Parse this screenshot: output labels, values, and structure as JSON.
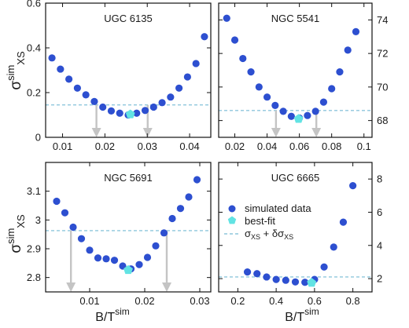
{
  "figure": {
    "ylabel_main": "σ",
    "ylabel_sup": "sim",
    "ylabel_sub": "XS",
    "xlabel_main": "B/T",
    "xlabel_sup": "sim"
  },
  "legend": {
    "panel": 3,
    "items": [
      {
        "kind": "marker",
        "label": "simulated data"
      },
      {
        "kind": "pentagon",
        "label": "best-fit"
      },
      {
        "kind": "dashed",
        "label_parts": [
          "σ",
          "XS",
          " + δσ",
          "XS"
        ]
      }
    ]
  },
  "colors": {
    "points": "#2d4fd0",
    "bestfit": "#62e3e3",
    "threshold": "#8ec6dc",
    "arrow": "#c4c4c4",
    "axis": "#111111"
  },
  "chart_data": [
    {
      "type": "scatter",
      "title": "UGC 6135",
      "xlim": [
        0.006,
        0.045
      ],
      "ylim": [
        0,
        0.6
      ],
      "xticks": [
        0.01,
        0.02,
        0.03,
        0.04
      ],
      "xtick_labels": [
        "0.01",
        "0.02",
        "0.03",
        "0.04"
      ],
      "yticks": [
        0,
        0.2,
        0.4,
        0.6
      ],
      "ytick_labels": [
        "0",
        "0.2",
        "0.4",
        "0.6"
      ],
      "yaxis_side": "left",
      "x": [
        0.0075,
        0.0095,
        0.0115,
        0.0135,
        0.0155,
        0.0175,
        0.0195,
        0.0215,
        0.0235,
        0.0255,
        0.0275,
        0.0295,
        0.0315,
        0.0335,
        0.0355,
        0.0375,
        0.0395,
        0.0415,
        0.0435
      ],
      "y": [
        0.355,
        0.305,
        0.26,
        0.22,
        0.19,
        0.16,
        0.135,
        0.118,
        0.108,
        0.1,
        0.108,
        0.12,
        0.135,
        0.155,
        0.18,
        0.22,
        0.27,
        0.33,
        0.45
      ],
      "best_fit": {
        "x": 0.026,
        "y": 0.103
      },
      "threshold": 0.145,
      "arrows_x": [
        0.018,
        0.0301
      ]
    },
    {
      "type": "scatter",
      "title": "NGC 5541",
      "xlim": [
        0.01,
        0.105
      ],
      "ylim": [
        67,
        75
      ],
      "xticks": [
        0.02,
        0.04,
        0.06,
        0.08,
        0.1
      ],
      "xtick_labels": [
        "0.02",
        "0.04",
        "0.06",
        "0.08",
        "0.1"
      ],
      "yticks": [
        68,
        70,
        72,
        74
      ],
      "ytick_labels": [
        "68",
        "70",
        "72",
        "74"
      ],
      "yaxis_side": "right",
      "x": [
        0.015,
        0.02,
        0.025,
        0.03,
        0.035,
        0.04,
        0.045,
        0.05,
        0.055,
        0.06,
        0.065,
        0.07,
        0.075,
        0.08,
        0.085,
        0.09,
        0.095
      ],
      "y": [
        74.1,
        72.8,
        71.7,
        70.9,
        70.0,
        69.4,
        68.9,
        68.55,
        68.25,
        68.15,
        68.3,
        68.55,
        69.1,
        69.9,
        70.9,
        72.2,
        73.3
      ],
      "best_fit": {
        "x": 0.0595,
        "y": 68.1
      },
      "threshold": 68.6,
      "arrows_x": [
        0.0455,
        0.0705
      ]
    },
    {
      "type": "scatter",
      "title": "NGC 5691",
      "xlim": [
        0.002,
        0.032
      ],
      "ylim": [
        2.75,
        3.2
      ],
      "xticks": [
        0.01,
        0.02,
        0.03
      ],
      "xtick_labels": [
        "0.01",
        "0.02",
        "0.03"
      ],
      "yticks": [
        2.8,
        2.9,
        3.0,
        3.1
      ],
      "ytick_labels": [
        "2.8",
        "2.9",
        "3",
        "3.1"
      ],
      "yaxis_side": "left",
      "x": [
        0.004,
        0.0055,
        0.007,
        0.0085,
        0.01,
        0.0115,
        0.013,
        0.0145,
        0.016,
        0.0175,
        0.019,
        0.0205,
        0.022,
        0.0235,
        0.025,
        0.0265,
        0.028,
        0.0295
      ],
      "y": [
        3.065,
        3.025,
        2.975,
        2.935,
        2.895,
        2.868,
        2.865,
        2.86,
        2.84,
        2.83,
        2.845,
        2.87,
        2.91,
        2.955,
        3.005,
        3.04,
        3.08,
        3.14
      ],
      "best_fit": {
        "x": 0.017,
        "y": 2.826
      },
      "threshold": 2.963,
      "arrows_x": [
        0.0066,
        0.024
      ]
    },
    {
      "type": "scatter",
      "title": "UGC 6665",
      "xlim": [
        0.1,
        0.9
      ],
      "ylim": [
        1.2,
        9
      ],
      "xticks": [
        0.2,
        0.4,
        0.6,
        0.8
      ],
      "xtick_labels": [
        "0.2",
        "0.4",
        "0.6",
        "0.8"
      ],
      "yticks": [
        2,
        4,
        6,
        8
      ],
      "ytick_labels": [
        "2",
        "4",
        "6",
        "8"
      ],
      "yaxis_side": "right",
      "x": [
        0.25,
        0.3,
        0.35,
        0.4,
        0.45,
        0.5,
        0.55,
        0.6,
        0.65,
        0.7,
        0.75,
        0.8
      ],
      "y": [
        2.4,
        2.3,
        2.1,
        1.95,
        1.9,
        1.8,
        1.78,
        1.95,
        2.7,
        3.9,
        5.4,
        7.6
      ],
      "best_fit": {
        "x": 0.585,
        "y": 1.75
      },
      "threshold": 2.1,
      "arrows_x": []
    }
  ]
}
